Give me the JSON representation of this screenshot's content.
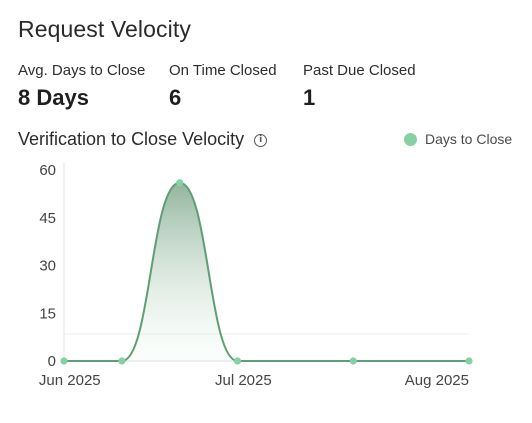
{
  "header": {
    "title": "Request Velocity"
  },
  "metrics": [
    {
      "label": "Avg. Days to Close",
      "value": "8 Days"
    },
    {
      "label": "On Time Closed",
      "value": "6"
    },
    {
      "label": "Past Due Closed",
      "value": "1"
    }
  ],
  "section": {
    "title": "Verification to Close Velocity",
    "info_icon": "info-icon"
  },
  "colors": {
    "series": "#86d1a1",
    "line": "#5e9e74",
    "area_top": "#8fb29a"
  },
  "chart_data": {
    "type": "area",
    "title": "Verification to Close Velocity",
    "xlabel": "",
    "ylabel": "",
    "ylim": [
      0,
      60
    ],
    "yticks": [
      0,
      15,
      30,
      45,
      60
    ],
    "xticks": [
      "Jun 2025",
      "Jul 2025",
      "Aug 2025"
    ],
    "legend": "top-right",
    "series": [
      {
        "name": "Days to Close",
        "points": [
          {
            "x": "2025-05-31",
            "y": 0
          },
          {
            "x": "2025-06-10",
            "y": 0
          },
          {
            "x": "2025-06-20",
            "y": 56
          },
          {
            "x": "2025-06-30",
            "y": 0
          },
          {
            "x": "2025-07-20",
            "y": 0
          },
          {
            "x": "2025-08-09",
            "y": 0
          }
        ]
      }
    ]
  }
}
